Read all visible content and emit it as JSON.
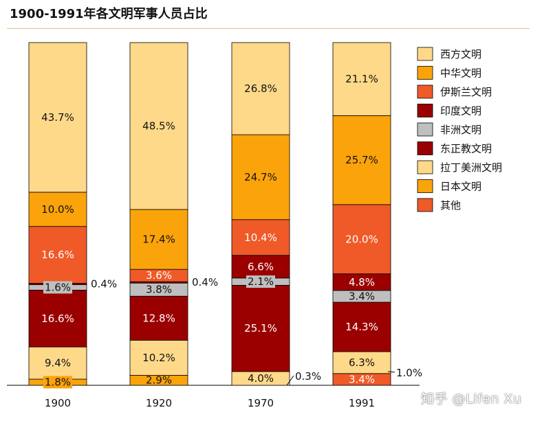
{
  "chart_data": {
    "type": "bar",
    "stacked": true,
    "title": "1900-1991年各文明军事人员占比",
    "categories": [
      "1900",
      "1920",
      "1970",
      "1991"
    ],
    "series": [
      {
        "name": "其他",
        "color": "#f05a28",
        "values": [
          0.0,
          0.0,
          0.0,
          3.4
        ],
        "labels": [
          "",
          "",
          "",
          "3.4%"
        ]
      },
      {
        "name": "日本文明",
        "color": "#fba30a",
        "values": [
          1.8,
          2.9,
          0.0,
          0.0
        ],
        "labels": [
          "1.8%",
          "2.9%",
          "",
          ""
        ]
      },
      {
        "name": "拉丁美洲文明",
        "color": "#ffd98a",
        "values": [
          9.4,
          10.2,
          4.0,
          6.3
        ],
        "labels": [
          "9.4%",
          "10.2%",
          "4.0%",
          "6.3%"
        ]
      },
      {
        "name": "东正教文明",
        "color": "#9b0000",
        "values": [
          16.6,
          12.8,
          25.1,
          14.3
        ],
        "labels": [
          "16.6%",
          "12.8%",
          "25.1%",
          "14.3%"
        ]
      },
      {
        "name": "非洲文明",
        "color": "#bfbfbf",
        "values": [
          1.6,
          3.8,
          2.1,
          3.4
        ],
        "labels": [
          "1.6%",
          "3.8%",
          "2.1%",
          "3.4%"
        ]
      },
      {
        "name": "印度文明",
        "color": "#9b0000",
        "values": [
          0.4,
          0.4,
          6.6,
          4.8
        ],
        "labels": [
          "0.4%",
          "0.4%",
          "6.6%",
          "4.8%"
        ]
      },
      {
        "name": "伊斯兰文明",
        "color": "#f05a28",
        "values": [
          16.6,
          3.6,
          10.4,
          20.0
        ],
        "labels": [
          "16.6%",
          "3.6%",
          "10.4%",
          "20.0%"
        ]
      },
      {
        "name": "中华文明",
        "color": "#fba30a",
        "values": [
          10.0,
          17.4,
          24.7,
          25.7
        ],
        "labels": [
          "10.0%",
          "17.4%",
          "24.7%",
          "25.7%"
        ]
      },
      {
        "name": "西方文明",
        "color": "#ffd98a",
        "values": [
          43.7,
          48.5,
          26.8,
          21.1
        ],
        "labels": [
          "43.7%",
          "48.5%",
          "26.8%",
          "21.1%"
        ]
      }
    ],
    "extra_labels": [
      {
        "category": "1970",
        "text": "0.3%"
      },
      {
        "category": "1991",
        "text": "1.0%"
      }
    ],
    "ylim": [
      0,
      100
    ],
    "grid": false,
    "legend_position": "right",
    "legend_order": [
      "西方文明",
      "中华文明",
      "伊斯兰文明",
      "印度文明",
      "非洲文明",
      "东正教文明",
      "拉丁美洲文明",
      "日本文明",
      "其他"
    ]
  },
  "watermark": "知乎 @Lifen Xu"
}
